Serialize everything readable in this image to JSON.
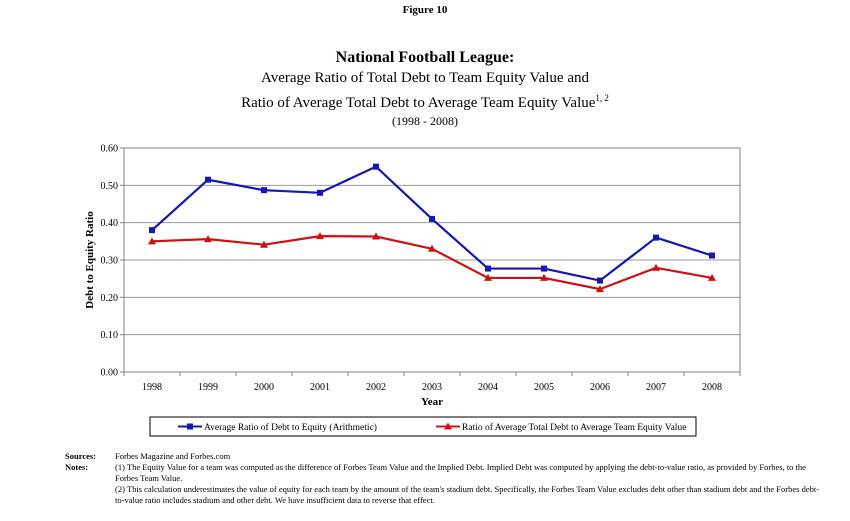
{
  "figure_label": "Figure 10",
  "title": "National Football League:",
  "subtitle1": "Average Ratio of Total Debt to Team Equity Value and",
  "subtitle2": "Ratio of Average Total Debt to Average Team Equity Value",
  "subtitle2_sup": "1, 2",
  "subtitle3": "(1998 - 2008)",
  "chart_data": {
    "type": "line",
    "x": [
      1998,
      1999,
      2000,
      2001,
      2002,
      2003,
      2004,
      2005,
      2006,
      2007,
      2008
    ],
    "xlabel": "Year",
    "ylabel": "Debt to Equity Ratio",
    "ylim": [
      0,
      0.6
    ],
    "yticks": [
      "0.00",
      "0.10",
      "0.20",
      "0.30",
      "0.40",
      "0.50",
      "0.60"
    ],
    "grid": true,
    "legend_position": "bottom",
    "series": [
      {
        "name": "Average Ratio of Debt to Equity (Arithmetic)",
        "color": "#1515b8",
        "marker": "square",
        "values": [
          0.38,
          0.515,
          0.487,
          0.48,
          0.55,
          0.41,
          0.277,
          0.277,
          0.245,
          0.36,
          0.312
        ]
      },
      {
        "name": "Ratio of Average Total Debt to Average Team Equity Value",
        "color": "#d01010",
        "marker": "triangle",
        "values": [
          0.35,
          0.356,
          0.341,
          0.364,
          0.363,
          0.33,
          0.252,
          0.252,
          0.222,
          0.279,
          0.252
        ]
      }
    ]
  },
  "sources_label": "Sources:",
  "sources_text": "Forbes Magazine and Forbes.com",
  "notes_label": "Notes:",
  "note1": "(1) The Equity Value for a team was computed as the difference of Forbes Team Value and the Implied Debt.  Implied Debt was computed by applying the debt-to-value ratio,  as provided by Forbes, to the Forbes Team Value.",
  "note2": "(2) This calculation underestimates the value of equity for each team by the amount of the team's stadium debt.  Specifically, the Forbes Team Value excludes debt other than stadium debt and the Forbes debt-to-value ratio includes stadium and other debt.  We have insufficient data to reverse that effect."
}
